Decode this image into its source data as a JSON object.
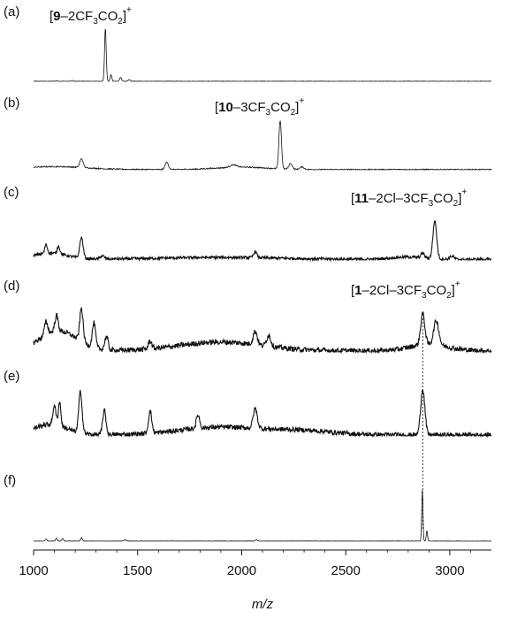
{
  "chart_data": {
    "type": "line",
    "xlabel": "m/z",
    "xlim": [
      1000,
      3200
    ],
    "xticks": [
      1000,
      1500,
      2000,
      2500,
      3000
    ],
    "dashed_reference_x": 2870,
    "panels": [
      {
        "id": "a",
        "panel_label": "(a)",
        "ion_label": [
          {
            "t": "["
          },
          {
            "t": "9",
            "b": true
          },
          {
            "t": "–2CF"
          },
          {
            "t": "3",
            "sub": true
          },
          {
            "t": "CO"
          },
          {
            "t": "2",
            "sub": true
          },
          {
            "t": "]"
          },
          {
            "t": "+",
            "sup": true
          }
        ],
        "ion_label_text": "[9–2CF3CO2]+",
        "noise": 0.004,
        "baseline_bumps": [],
        "peaks": [
          {
            "x": 1110,
            "h": 0.012,
            "w": 4
          },
          {
            "x": 1185,
            "h": 0.015,
            "w": 4
          },
          {
            "x": 1345,
            "h": 1.0,
            "w": 4
          },
          {
            "x": 1372,
            "h": 0.12,
            "w": 4
          },
          {
            "x": 1418,
            "h": 0.07,
            "w": 5
          },
          {
            "x": 1460,
            "h": 0.03,
            "w": 5
          }
        ]
      },
      {
        "id": "b",
        "panel_label": "(b)",
        "ion_label": [
          {
            "t": "["
          },
          {
            "t": "10",
            "b": true
          },
          {
            "t": "–3CF"
          },
          {
            "t": "3",
            "sub": true
          },
          {
            "t": "CO"
          },
          {
            "t": "2",
            "sub": true
          },
          {
            "t": "]"
          },
          {
            "t": "+",
            "sup": true
          }
        ],
        "ion_label_text": "[10–3CF3CO2]+",
        "noise": 0.012,
        "baseline_bumps": [
          {
            "x": 1100,
            "h": 0.06,
            "w": 150
          },
          {
            "x": 2000,
            "h": 0.05,
            "w": 120
          }
        ],
        "peaks": [
          {
            "x": 1230,
            "h": 0.18,
            "w": 8
          },
          {
            "x": 1640,
            "h": 0.15,
            "w": 8
          },
          {
            "x": 1960,
            "h": 0.05,
            "w": 15
          },
          {
            "x": 2185,
            "h": 1.0,
            "w": 6
          },
          {
            "x": 2235,
            "h": 0.12,
            "w": 8
          },
          {
            "x": 2290,
            "h": 0.05,
            "w": 10
          }
        ]
      },
      {
        "id": "c",
        "panel_label": "(c)",
        "ion_label": [
          {
            "t": "["
          },
          {
            "t": "11",
            "b": true
          },
          {
            "t": "–2Cl–3CF"
          },
          {
            "t": "3",
            "sub": true
          },
          {
            "t": "CO"
          },
          {
            "t": "2",
            "sub": true
          },
          {
            "t": "]"
          },
          {
            "t": "+",
            "sup": true
          }
        ],
        "ion_label_text": "[11–2Cl–3CF3CO2]+",
        "noise": 0.035,
        "baseline_bumps": [
          {
            "x": 1080,
            "h": 0.16,
            "w": 80
          },
          {
            "x": 1900,
            "h": 0.05,
            "w": 300
          },
          {
            "x": 2800,
            "h": 0.06,
            "w": 80
          }
        ],
        "peaks": [
          {
            "x": 1060,
            "h": 0.22,
            "w": 6
          },
          {
            "x": 1120,
            "h": 0.2,
            "w": 6
          },
          {
            "x": 1230,
            "h": 0.52,
            "w": 8
          },
          {
            "x": 1330,
            "h": 0.08,
            "w": 10
          },
          {
            "x": 2065,
            "h": 0.15,
            "w": 8
          },
          {
            "x": 2870,
            "h": 0.12,
            "w": 8
          },
          {
            "x": 2928,
            "h": 0.95,
            "w": 9
          },
          {
            "x": 3010,
            "h": 0.08,
            "w": 10
          }
        ]
      },
      {
        "id": "d",
        "panel_label": "(d)",
        "ion_label": [
          {
            "t": "["
          },
          {
            "t": "1",
            "b": true
          },
          {
            "t": "–2Cl–3CF"
          },
          {
            "t": "3",
            "sub": true
          },
          {
            "t": "CO"
          },
          {
            "t": "2",
            "sub": true
          },
          {
            "t": "]"
          },
          {
            "t": "+",
            "sup": true
          }
        ],
        "ion_label_text": "[1–2Cl–3CF3CO2]+",
        "noise": 0.06,
        "baseline_bumps": [
          {
            "x": 1120,
            "h": 0.45,
            "w": 90
          },
          {
            "x": 1900,
            "h": 0.2,
            "w": 200
          },
          {
            "x": 2900,
            "h": 0.15,
            "w": 90
          }
        ],
        "peaks": [
          {
            "x": 1060,
            "h": 0.3,
            "w": 8
          },
          {
            "x": 1110,
            "h": 0.35,
            "w": 8
          },
          {
            "x": 1230,
            "h": 0.75,
            "w": 8
          },
          {
            "x": 1290,
            "h": 0.55,
            "w": 8
          },
          {
            "x": 1350,
            "h": 0.3,
            "w": 8
          },
          {
            "x": 1560,
            "h": 0.18,
            "w": 8
          },
          {
            "x": 2065,
            "h": 0.3,
            "w": 10
          },
          {
            "x": 2130,
            "h": 0.25,
            "w": 10
          },
          {
            "x": 2870,
            "h": 0.7,
            "w": 10
          },
          {
            "x": 2935,
            "h": 0.55,
            "w": 12
          }
        ]
      },
      {
        "id": "e",
        "panel_label": "(e)",
        "ion_label": [],
        "ion_label_text": "",
        "noise": 0.05,
        "baseline_bumps": [
          {
            "x": 1080,
            "h": 0.22,
            "w": 80
          },
          {
            "x": 1900,
            "h": 0.16,
            "w": 200
          },
          {
            "x": 2300,
            "h": 0.08,
            "w": 150
          }
        ],
        "peaks": [
          {
            "x": 1100,
            "h": 0.4,
            "w": 7
          },
          {
            "x": 1125,
            "h": 0.5,
            "w": 6
          },
          {
            "x": 1225,
            "h": 0.85,
            "w": 8
          },
          {
            "x": 1340,
            "h": 0.5,
            "w": 8
          },
          {
            "x": 1560,
            "h": 0.45,
            "w": 8
          },
          {
            "x": 1790,
            "h": 0.28,
            "w": 8
          },
          {
            "x": 2065,
            "h": 0.4,
            "w": 10
          },
          {
            "x": 2870,
            "h": 0.95,
            "w": 10
          }
        ]
      },
      {
        "id": "f",
        "panel_label": "(f)",
        "ion_label": [],
        "ion_label_text": "",
        "noise": 0.004,
        "baseline_bumps": [],
        "peaks": [
          {
            "x": 1060,
            "h": 0.04,
            "w": 4
          },
          {
            "x": 1110,
            "h": 0.06,
            "w": 4
          },
          {
            "x": 1140,
            "h": 0.05,
            "w": 4
          },
          {
            "x": 1230,
            "h": 0.07,
            "w": 4
          },
          {
            "x": 1440,
            "h": 0.03,
            "w": 4
          },
          {
            "x": 2070,
            "h": 0.03,
            "w": 4
          },
          {
            "x": 2868,
            "h": 1.0,
            "w": 3
          },
          {
            "x": 2890,
            "h": 0.2,
            "w": 3
          }
        ]
      }
    ]
  }
}
